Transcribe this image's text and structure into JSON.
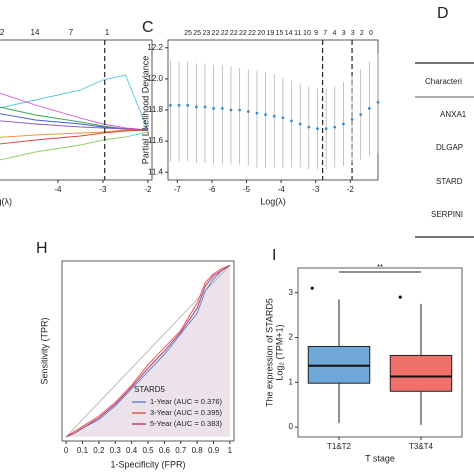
{
  "chart_data": [
    {
      "type": "line",
      "xlabel": "Log(λ)",
      "xlim": [
        -6.62,
        -1.91
      ],
      "ylim": [
        -0.5,
        0.9
      ],
      "xticks": [
        -4,
        -3,
        -2
      ],
      "top_ticks": [
        {
          "value": -5.24,
          "label": "2"
        },
        {
          "value": -4.51,
          "label": "14"
        },
        {
          "value": -3.71,
          "label": "7"
        },
        {
          "value": -2.91,
          "label": "1"
        }
      ],
      "vlines": [
        -2.96
      ],
      "x": [
        -6.6,
        -5.5,
        -4.5,
        -3.5,
        -3.0,
        -2.5,
        -2.0
      ],
      "series": [
        {
          "color": "#4fc7d6",
          "values": [
            0.1,
            0.2,
            0.3,
            0.4,
            0.5,
            0.55,
            0
          ]
        },
        {
          "color": "#d54fd5",
          "values": [
            0.55,
            0.4,
            0.25,
            0.12,
            0.06,
            0.02,
            0
          ]
        },
        {
          "color": "#3aa84a",
          "values": [
            0.35,
            0.25,
            0.15,
            0.08,
            0.04,
            0.01,
            0
          ]
        },
        {
          "color": "#3f5fd0",
          "values": [
            0.25,
            0.18,
            0.1,
            0.06,
            0.03,
            0.01,
            0
          ]
        },
        {
          "color": "#e89a2c",
          "values": [
            -0.1,
            -0.08,
            -0.05,
            -0.03,
            -0.02,
            0,
            0
          ]
        },
        {
          "color": "#e0413c",
          "values": [
            -0.2,
            -0.15,
            -0.1,
            -0.06,
            -0.03,
            -0.01,
            0
          ]
        },
        {
          "color": "#8fd06a",
          "values": [
            -0.4,
            -0.32,
            -0.22,
            -0.15,
            -0.1,
            -0.07,
            -0.02
          ]
        },
        {
          "color": "#8a5cc8",
          "values": [
            0.15,
            0.1,
            0.06,
            0.03,
            0.02,
            0.01,
            0
          ]
        }
      ]
    },
    {
      "type": "errorbar",
      "panel": "C",
      "xlabel": "Log(λ)",
      "ylabel": "Partial Likelihood Deviance",
      "xlim": [
        -7.27,
        -1.2
      ],
      "ylim": [
        11.35,
        12.25
      ],
      "xticks": [
        -7,
        -6,
        -5,
        -4,
        -3,
        -2
      ],
      "yticks": [
        {
          "value": 11.4,
          "label": "11.4"
        },
        {
          "value": 11.6,
          "label": "11.6"
        },
        {
          "value": 11.8,
          "label": "11.8"
        },
        {
          "value": 12.0,
          "label": "12.0"
        },
        {
          "value": 12.2,
          "label": "12.2"
        }
      ],
      "top_labels": [
        "25",
        "25",
        "23",
        "22",
        "22",
        "22",
        "22",
        "22",
        "20",
        "19",
        "15",
        "14",
        "11",
        "10",
        "9",
        "7",
        "4",
        "3",
        "3",
        "2",
        "0"
      ],
      "vlines": [
        -2.8,
        -1.95
      ],
      "color": "#3a8fd0",
      "x": [
        -7.2,
        -6.95,
        -6.7,
        -6.45,
        -6.2,
        -5.95,
        -5.7,
        -5.45,
        -5.2,
        -4.95,
        -4.7,
        -4.45,
        -4.2,
        -3.95,
        -3.7,
        -3.45,
        -3.2,
        -2.95,
        -2.7,
        -2.45,
        -2.2,
        -1.95,
        -1.7,
        -1.45,
        -1.2
      ],
      "values": [
        11.83,
        11.83,
        11.83,
        11.82,
        11.82,
        11.81,
        11.81,
        11.8,
        11.8,
        11.79,
        11.78,
        11.77,
        11.76,
        11.75,
        11.73,
        11.71,
        11.69,
        11.68,
        11.68,
        11.69,
        11.71,
        11.74,
        11.77,
        11.81,
        11.85
      ],
      "upper": [
        12.12,
        12.11,
        12.11,
        12.1,
        12.1,
        12.09,
        12.09,
        12.08,
        12.07,
        12.06,
        12.05,
        12.04,
        12.03,
        12.01,
        11.99,
        11.97,
        11.95,
        11.94,
        11.94,
        11.95,
        11.98,
        12.02,
        12.06,
        12.11,
        12.16
      ],
      "lower": [
        11.47,
        11.47,
        11.47,
        11.46,
        11.46,
        11.45,
        11.45,
        11.45,
        11.45,
        11.44,
        11.43,
        11.43,
        11.43,
        11.43,
        11.43,
        11.43,
        11.42,
        11.42,
        11.42,
        11.43,
        11.44,
        11.46,
        11.48,
        11.5,
        11.52
      ]
    },
    {
      "type": "roc",
      "panel": "H",
      "xlabel": "1-Specificity (FPR)",
      "ylabel": "Sensitivity (TPR)",
      "legend_title": "STARD5",
      "xlim": [
        -0.025,
        1.025
      ],
      "ylim": [
        -0.025,
        1.025
      ],
      "xticks": [
        0,
        0.1,
        0.2,
        0.3,
        0.4,
        0.5,
        0.6,
        0.7,
        0.8,
        0.9,
        1
      ],
      "x": [
        0,
        0.05,
        0.1,
        0.2,
        0.3,
        0.4,
        0.5,
        0.6,
        0.7,
        0.8,
        0.85,
        0.9,
        0.95,
        1
      ],
      "series": [
        {
          "name": "1-Year (AUC = 0.376)",
          "color": "#6b86cf",
          "values": [
            0,
            0.02,
            0.05,
            0.1,
            0.18,
            0.28,
            0.38,
            0.48,
            0.6,
            0.72,
            0.85,
            0.92,
            0.97,
            1
          ]
        },
        {
          "name": "3-Year (AUC = 0.395)",
          "color": "#e8574f",
          "values": [
            0,
            0.03,
            0.06,
            0.12,
            0.2,
            0.3,
            0.42,
            0.52,
            0.62,
            0.78,
            0.9,
            0.95,
            0.98,
            1
          ]
        },
        {
          "name": "5-Year (AUC = 0.383)",
          "color": "#b5446e",
          "values": [
            0,
            0.02,
            0.05,
            0.11,
            0.19,
            0.29,
            0.4,
            0.5,
            0.61,
            0.75,
            0.88,
            0.94,
            0.97,
            1
          ]
        }
      ]
    },
    {
      "type": "box",
      "panel": "I",
      "xlabel": "T stage",
      "ylabel": [
        "The expression of STARD5",
        "Log₂ (TPM+1)"
      ],
      "significance": "**",
      "categories": [
        "T1&T2",
        "T3&T4"
      ],
      "colors": [
        "#6fa8d6",
        "#f0716b"
      ],
      "ylim": [
        -0.22,
        3.55
      ],
      "yticks": [
        0,
        1,
        2,
        3
      ],
      "whisker_low": [
        0.09,
        0.05
      ],
      "q1": [
        0.98,
        0.8
      ],
      "median": [
        1.37,
        1.13
      ],
      "q3": [
        1.8,
        1.6
      ],
      "whisker_high": [
        2.85,
        2.75
      ],
      "outliers": [
        [
          3.1
        ],
        [
          2.9
        ]
      ]
    }
  ],
  "table": {
    "panel": "D",
    "header": "Characteri",
    "rows": [
      "ANXA1",
      "DLGAP",
      "STARD",
      "SERPINI"
    ]
  }
}
